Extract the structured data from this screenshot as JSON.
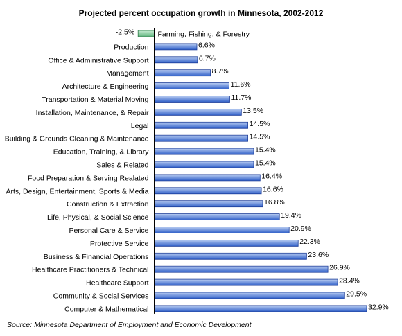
{
  "chart_data": {
    "type": "bar",
    "orientation": "horizontal",
    "title": "Projected percent occupation growth in Minnesota, 2002-2012",
    "source": "Source: Minnesota Department of Employment and Economic Development",
    "value_suffix": "%",
    "grid": false,
    "legend": "none",
    "xlim": [
      -2.5,
      32.9
    ],
    "categories": [
      "Farming, Fishing, & Forestry",
      "Production",
      "Office & Administrative Support",
      "Management",
      "Architecture & Engineering",
      "Transportation & Material Moving",
      "Installation, Maintenance, & Repair",
      "Legal",
      "Building & Grounds Cleaning & Maintenance",
      "Education, Training, & Library",
      "Sales & Related",
      "Food Preparation & Serving Realated",
      "Arts, Design, Entertainment, Sports & Media",
      "Construction & Extraction",
      "Life, Physical, & Social Science",
      "Personal Care & Service",
      "Protective Service",
      "Business & Financial Operations",
      "Healthcare Practitioners & Technical",
      "Healthcare Support",
      "Community & Social Services",
      "Computer & Mathematical"
    ],
    "values": [
      -2.5,
      6.6,
      6.7,
      8.7,
      11.6,
      11.7,
      13.5,
      14.5,
      14.5,
      15.4,
      15.4,
      16.4,
      16.6,
      16.8,
      19.4,
      20.9,
      22.3,
      23.6,
      26.9,
      28.4,
      29.5,
      32.9
    ],
    "colors": {
      "positive_fill_top": "#b9cdf2",
      "positive_fill_bottom": "#2f5fc8",
      "positive_stroke": "#1f3f99",
      "negative_fill_top": "#c7ecd3",
      "negative_fill_bottom": "#5fb47e",
      "negative_stroke": "#2f7a48",
      "axis": "#000000"
    }
  }
}
